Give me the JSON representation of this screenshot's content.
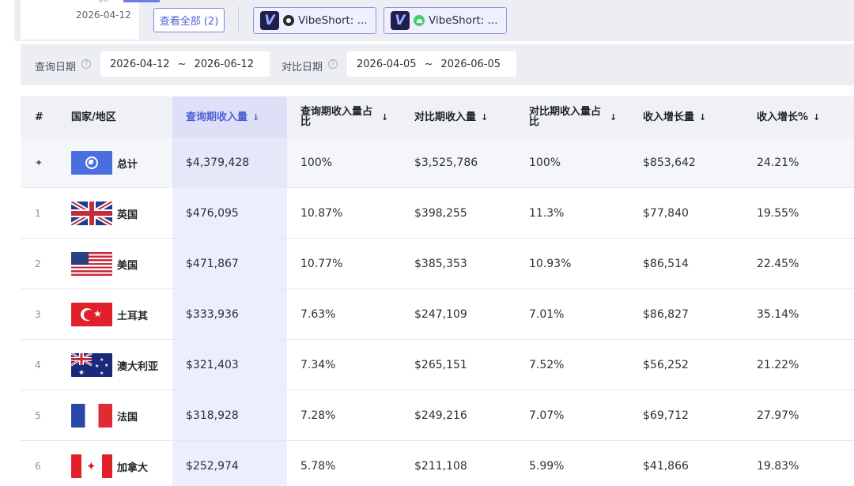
{
  "top": {
    "small_text": "$0",
    "date": "2026-04-12",
    "view_all": "查看全部 (2)",
    "apps": [
      {
        "name": "VibeShort: ...",
        "store": "apple-icon"
      },
      {
        "name": "VibeShort: ...",
        "store": "android-icon"
      }
    ]
  },
  "filters": {
    "query_label": "查询日期",
    "query_start": "2026-04-12",
    "query_end": "2026-06-12",
    "compare_label": "对比日期",
    "compare_start": "2026-04-05",
    "compare_end": "2026-06-05",
    "sep": "~"
  },
  "table": {
    "headers": [
      "#",
      "国家/地区",
      "查询期收入量",
      "查询期收入量占比",
      "对比期收入量",
      "对比期收入量占比",
      "收入增长量",
      "收入增长%"
    ],
    "sort_arrow": "↓",
    "total": {
      "country": "总计",
      "flag": "globe-icon",
      "query": "$4,379,428",
      "query_share": "100%",
      "compare": "$3,525,786",
      "compare_share": "100%",
      "growth": "$853,642",
      "growth_pct": "24.21%"
    },
    "rows": [
      {
        "rank": "1",
        "country": "英国",
        "flag": "uk",
        "query": "$476,095",
        "query_share": "10.87%",
        "compare": "$398,255",
        "compare_share": "11.3%",
        "growth": "$77,840",
        "growth_pct": "19.55%"
      },
      {
        "rank": "2",
        "country": "美国",
        "flag": "us",
        "query": "$471,867",
        "query_share": "10.77%",
        "compare": "$385,353",
        "compare_share": "10.93%",
        "growth": "$86,514",
        "growth_pct": "22.45%"
      },
      {
        "rank": "3",
        "country": "土耳其",
        "flag": "tr",
        "query": "$333,936",
        "query_share": "7.63%",
        "compare": "$247,109",
        "compare_share": "7.01%",
        "growth": "$86,827",
        "growth_pct": "35.14%"
      },
      {
        "rank": "4",
        "country": "澳大利亚",
        "flag": "au",
        "query": "$321,403",
        "query_share": "7.34%",
        "compare": "$265,151",
        "compare_share": "7.52%",
        "growth": "$56,252",
        "growth_pct": "21.22%"
      },
      {
        "rank": "5",
        "country": "法国",
        "flag": "fr",
        "query": "$318,928",
        "query_share": "7.28%",
        "compare": "$249,216",
        "compare_share": "7.07%",
        "growth": "$69,712",
        "growth_pct": "27.97%"
      },
      {
        "rank": "6",
        "country": "加拿大",
        "flag": "ca",
        "query": "$252,974",
        "query_share": "5.78%",
        "compare": "$211,108",
        "compare_share": "5.99%",
        "growth": "$41,866",
        "growth_pct": "19.83%"
      }
    ]
  },
  "colors": {
    "accent": "#4e5fd6",
    "highlight_col": "#eceefb",
    "header_bg": "#eff1f6"
  }
}
